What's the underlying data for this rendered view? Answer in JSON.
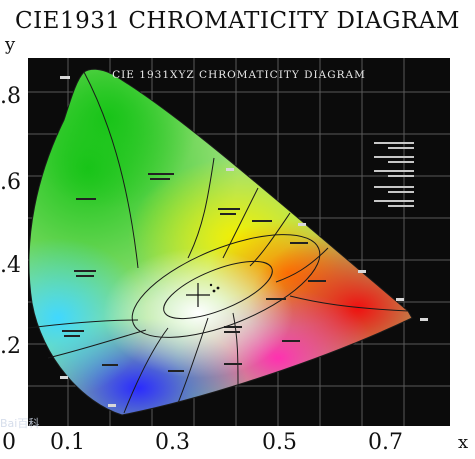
{
  "header": {
    "title": "CIE1931 CHROMATICITY DIAGRAM"
  },
  "diagram": {
    "inner_title": "CIE 1931XYZ CHROMATICITY DIAGRAM",
    "x_axis_letter": "x",
    "y_axis_letter": "y",
    "y_ticks": [
      ".8",
      ".6",
      ".4",
      ".2"
    ],
    "x_ticks": [
      "0",
      "0.1",
      "0.3",
      "0.5",
      "0.7"
    ],
    "watermark": "Bai百科",
    "colors": {
      "background": "#0b0b0b",
      "green": "#1fc21f",
      "red": "#ee1111",
      "blue": "#2222ee"
    }
  }
}
